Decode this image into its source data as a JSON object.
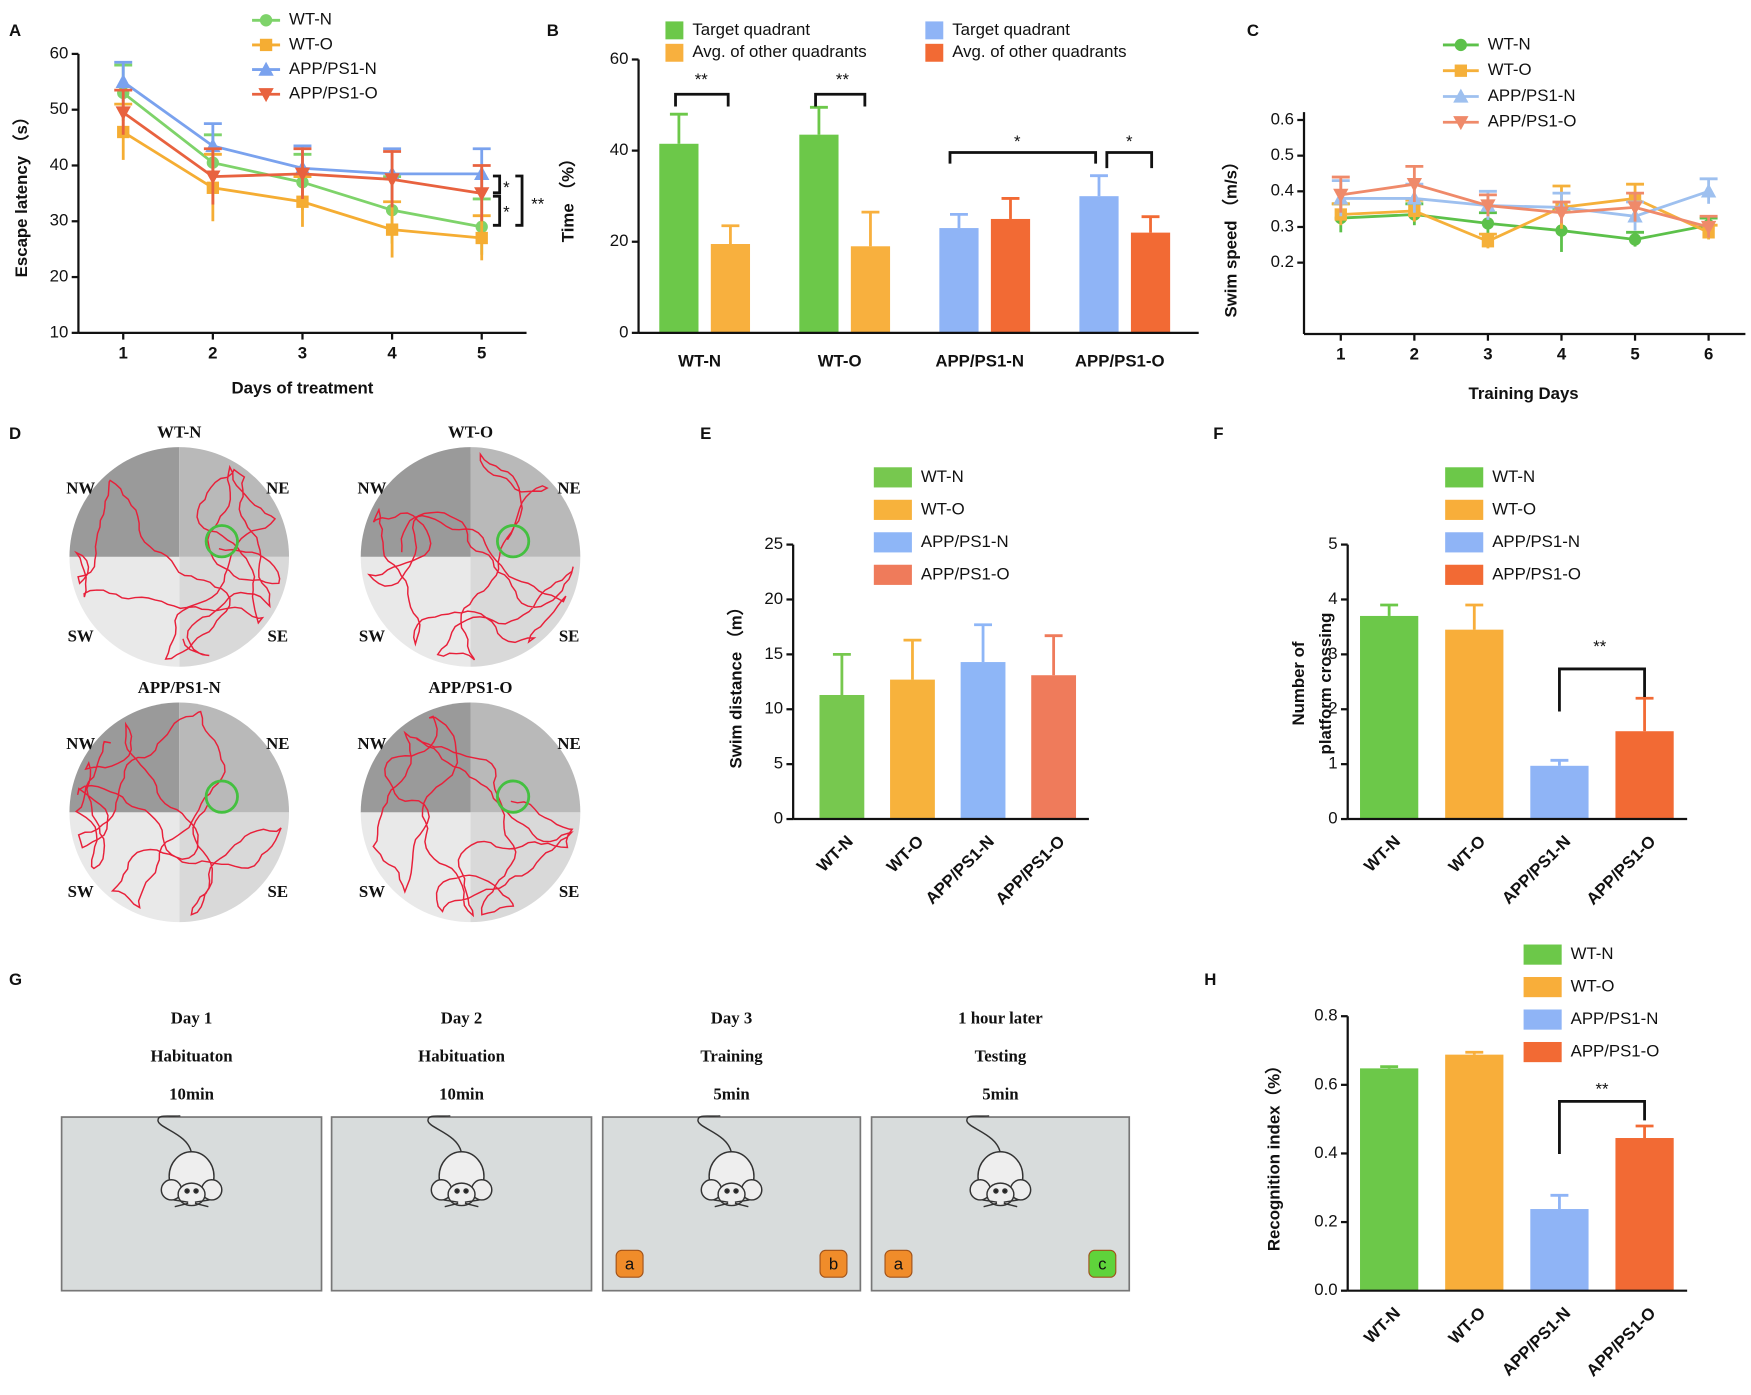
{
  "chart_data": [
    {
      "panel": "A",
      "type": "line",
      "xlabel": "Days of treatment",
      "ylabel": "Escape latency （s）",
      "x": [
        1,
        2,
        3,
        4,
        5
      ],
      "xlim": [
        0.5,
        5.5
      ],
      "ylim": [
        10,
        60
      ],
      "yticks": [
        10,
        20,
        30,
        40,
        50,
        60
      ],
      "series": [
        {
          "name": "WT-N",
          "color": "#7ed36a",
          "marker": "circle",
          "values": [
            53,
            40.5,
            37,
            32,
            29
          ],
          "errors": [
            5,
            5,
            5,
            6,
            5
          ]
        },
        {
          "name": "WT-O",
          "color": "#f5ad33",
          "marker": "square",
          "values": [
            46,
            36,
            33.5,
            28.5,
            27
          ],
          "errors": [
            5,
            6,
            4.5,
            5,
            4
          ]
        },
        {
          "name": "APP/PS1-N",
          "color": "#7aa2ee",
          "marker": "triangle",
          "values": [
            55,
            43.5,
            39.5,
            38.5,
            38.5
          ],
          "errors": [
            3.5,
            4,
            4,
            4.5,
            4.5
          ]
        },
        {
          "name": "APP/PS1-O",
          "color": "#e8623f",
          "marker": "triangle-down",
          "values": [
            49.5,
            38,
            38.5,
            37.5,
            35
          ],
          "errors": [
            4,
            5,
            4.5,
            5,
            5
          ]
        }
      ],
      "annotations": [
        "*",
        "*",
        "**"
      ]
    },
    {
      "panel": "B",
      "type": "grouped-bar",
      "ylabel": "Time （%）",
      "categories": [
        "WT-N",
        "WT-O",
        "APP/PS1-N",
        "APP/PS1-O"
      ],
      "ylim": [
        0,
        60
      ],
      "yticks": [
        0,
        20,
        40,
        60
      ],
      "series": [
        {
          "name": "Target quadrant",
          "color": "#6cc849",
          "values": [
            41.5,
            43.5,
            null,
            null
          ],
          "errors": [
            6.5,
            6,
            null,
            null
          ]
        },
        {
          "name": "Avg. of other quadrants",
          "color": "#f8b03e",
          "values": [
            19.5,
            19,
            null,
            null
          ],
          "errors": [
            4,
            7.5,
            null,
            null
          ]
        },
        {
          "name": "Target quadrant",
          "color": "#8fb4f6",
          "values": [
            null,
            null,
            23,
            30
          ],
          "errors": [
            null,
            null,
            3,
            4.5
          ]
        },
        {
          "name": "Avg. of other quadrants",
          "color": "#f26a34",
          "values": [
            null,
            null,
            25,
            22
          ],
          "errors": [
            null,
            null,
            4.5,
            3.5
          ]
        }
      ],
      "annotations": [
        "**",
        "**",
        "*",
        "*"
      ]
    },
    {
      "panel": "C",
      "type": "line",
      "xlabel": "Training Days",
      "ylabel": "Swim speed （m/s）",
      "x": [
        1,
        2,
        3,
        4,
        5,
        6
      ],
      "xlim": [
        0.5,
        6.5
      ],
      "ylim": [
        0,
        0.6
      ],
      "yticks": [
        0.2,
        0.3,
        0.4,
        0.5,
        0.6
      ],
      "series": [
        {
          "name": "WT-N",
          "color": "#5cc14a",
          "marker": "circle",
          "values": [
            0.325,
            0.335,
            0.31,
            0.29,
            0.265,
            0.305
          ],
          "errors": [
            0.04,
            0.03,
            0.03,
            0.06,
            0.02,
            0.02
          ]
        },
        {
          "name": "WT-O",
          "color": "#f5b03a",
          "marker": "square",
          "values": [
            0.335,
            0.345,
            0.26,
            0.355,
            0.38,
            0.285
          ],
          "errors": [
            0.03,
            0.03,
            0.02,
            0.06,
            0.04,
            0.02
          ]
        },
        {
          "name": "APP/PS1-N",
          "color": "#9ec0ef",
          "marker": "triangle",
          "values": [
            0.38,
            0.38,
            0.36,
            0.355,
            0.33,
            0.4
          ],
          "errors": [
            0.05,
            0.04,
            0.04,
            0.04,
            0.04,
            0.035
          ]
        },
        {
          "name": "APP/PS1-O",
          "color": "#ef8a6a",
          "marker": "triangle-down",
          "values": [
            0.39,
            0.42,
            0.36,
            0.34,
            0.355,
            0.3
          ],
          "errors": [
            0.05,
            0.05,
            0.03,
            0.03,
            0.04,
            0.03
          ]
        }
      ]
    },
    {
      "panel": "E",
      "type": "bar",
      "ylabel": "Swim distance （m）",
      "categories": [
        "WT-N",
        "WT-O",
        "APP/PS1-N",
        "APP/PS1-O"
      ],
      "values": [
        11.3,
        12.7,
        14.3,
        13.1
      ],
      "errors": [
        3.7,
        3.6,
        3.4,
        3.6
      ],
      "colors": [
        "#77c84f",
        "#f7b23c",
        "#8eb6f7",
        "#ef7b5b"
      ],
      "ylim": [
        0,
        25
      ],
      "yticks": [
        0,
        5,
        10,
        15,
        20,
        25
      ]
    },
    {
      "panel": "F",
      "type": "bar",
      "ylabel": [
        "Number of",
        "platform crossing"
      ],
      "categories": [
        "WT-N",
        "WT-O",
        "APP/PS1-N",
        "APP/PS1-O"
      ],
      "values": [
        3.7,
        3.45,
        0.97,
        1.6
      ],
      "errors": [
        0.2,
        0.45,
        0.1,
        0.6
      ],
      "colors": [
        "#6cc849",
        "#f8ae3a",
        "#8fb4f6",
        "#f26a34"
      ],
      "ylim": [
        0,
        5
      ],
      "yticks": [
        0,
        1,
        2,
        3,
        4,
        5
      ],
      "annotations": [
        "**"
      ]
    },
    {
      "panel": "H",
      "type": "bar",
      "ylabel": "Recognition index（%）",
      "categories": [
        "WT-N",
        "WT-O",
        "APP/PS1-N",
        "APP/PS1-O"
      ],
      "values": [
        0.648,
        0.688,
        0.238,
        0.445
      ],
      "errors": [
        0.005,
        0.007,
        0.04,
        0.035
      ],
      "colors": [
        "#6cc849",
        "#f8ae3a",
        "#8fb4f6",
        "#f26a34"
      ],
      "ylim": [
        0,
        0.8
      ],
      "yticks": [
        {
          "value": 0,
          "label": "0.0"
        },
        0.2,
        0.4,
        0.6,
        0.8
      ],
      "annotations": [
        "**"
      ]
    }
  ],
  "panel_d": {
    "panel": "D",
    "arenas": [
      "WT-N",
      "WT-O",
      "APP/PS1-N",
      "APP/PS1-O"
    ],
    "directions": [
      "NW",
      "NE",
      "SW",
      "SE"
    ]
  },
  "panel_g": {
    "panel": "G",
    "steps": [
      {
        "lines": [
          "Day 1",
          "Habituaton",
          "10min"
        ],
        "objects": []
      },
      {
        "lines": [
          "Day 2",
          "Habituation",
          "10min"
        ],
        "objects": []
      },
      {
        "lines": [
          "Day 3",
          "Training",
          "5min"
        ],
        "objects": [
          "a",
          "b"
        ]
      },
      {
        "lines": [
          "1 hour later",
          "Testing",
          "5min"
        ],
        "objects": [
          "a",
          "c"
        ]
      }
    ]
  }
}
